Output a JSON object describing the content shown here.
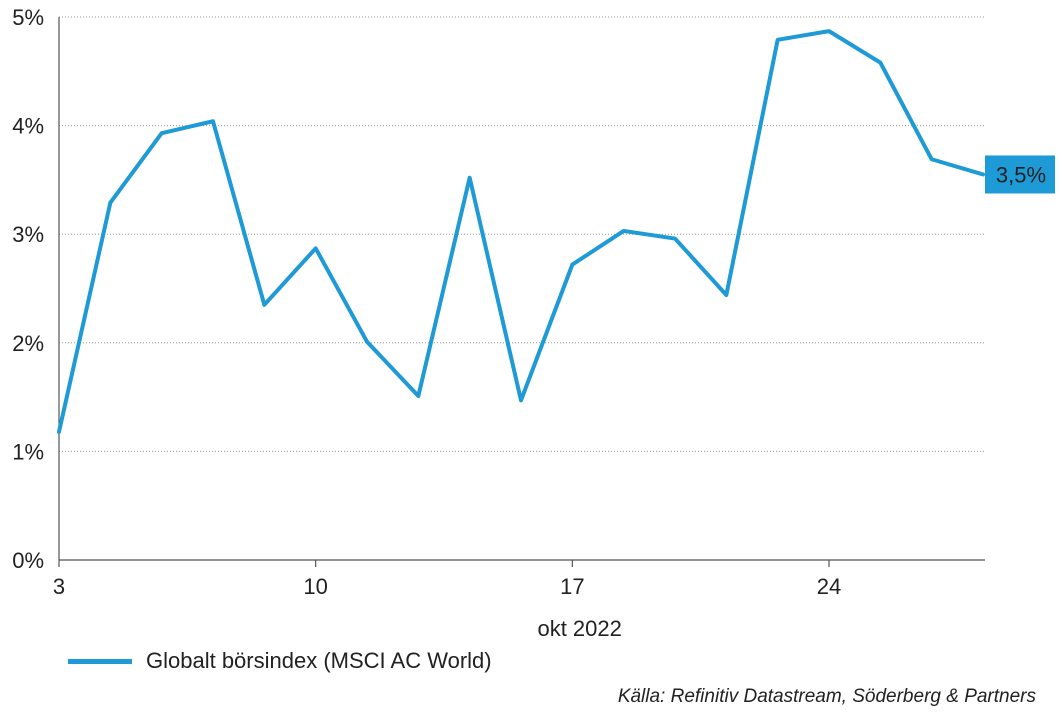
{
  "chart_data": {
    "type": "line",
    "xlabel": "okt 2022",
    "ylabel": "",
    "x_start_day": 3,
    "x_end_day": 28,
    "xticks": [
      "3",
      "10",
      "17",
      "24"
    ],
    "yticks": [
      "0%",
      "1%",
      "2%",
      "3%",
      "4%",
      "5%"
    ],
    "ylim": [
      0,
      5
    ],
    "grid": true,
    "legend_position": "bottom-left",
    "series": [
      {
        "name": "Globalt börsindex (MSCI AC World)",
        "color": "#1e9ad6",
        "x": [
          "2022-10-03",
          "2022-10-04",
          "2022-10-05",
          "2022-10-06",
          "2022-10-07",
          "2022-10-10",
          "2022-10-11",
          "2022-10-12",
          "2022-10-13",
          "2022-10-14",
          "2022-10-17",
          "2022-10-18",
          "2022-10-19",
          "2022-10-20",
          "2022-10-21",
          "2022-10-24",
          "2022-10-25",
          "2022-10-26",
          "2022-10-27",
          "2022-10-28"
        ],
        "x_day": [
          3,
          4.4,
          5.8,
          7.2,
          8.6,
          10,
          11.4,
          12.8,
          14.2,
          15.6,
          17,
          18.4,
          19.8,
          21.2,
          22.6,
          24,
          25.4,
          26.8,
          28.2,
          28.2
        ],
        "values": [
          1.18,
          3.29,
          3.93,
          4.04,
          2.35,
          2.87,
          2.01,
          1.51,
          3.52,
          1.47,
          2.72,
          3.03,
          2.96,
          2.44,
          4.79,
          4.87,
          4.58,
          3.69,
          3.55,
          3.55
        ]
      }
    ],
    "end_label": "3,5%"
  },
  "source": "Källa: Refinitiv Datastream, Söderberg & Partners"
}
